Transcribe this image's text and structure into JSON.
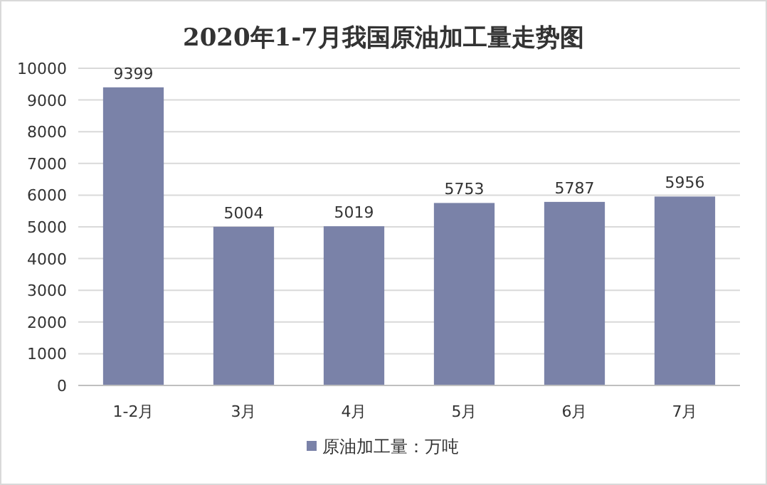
{
  "chart_data": {
    "type": "bar",
    "title": "2020年1-7月我国原油加工量走势图",
    "categories": [
      "1-2月",
      "3月",
      "4月",
      "5月",
      "6月",
      "7月"
    ],
    "series": [
      {
        "name": "原油加工量：万吨",
        "color": "#7a82a8",
        "values": [
          9399,
          5004,
          5019,
          5753,
          5787,
          5956
        ]
      }
    ],
    "ylim": [
      0,
      10000
    ],
    "yticks": [
      0,
      1000,
      2000,
      3000,
      4000,
      5000,
      6000,
      7000,
      8000,
      9000,
      10000
    ],
    "grid": "y",
    "legend": "bottom",
    "data_labels": true
  }
}
